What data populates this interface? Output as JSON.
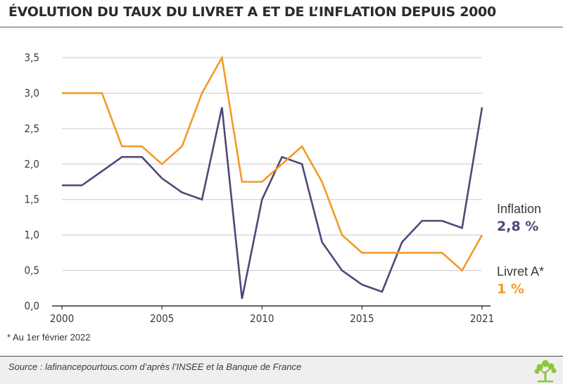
{
  "title": "ÉVOLUTION DU TAUX DU LIVRET A ET DE L’INFLATION DEPUIS 2000",
  "footnote": "* Au 1er février 2022",
  "source": "Source : lafinancepourtous.com d’après l’INSEE et la Banque de France",
  "legend": {
    "inflation_name": "Inflation",
    "inflation_value": "2,8 %",
    "livret_name": "Livret A*",
    "livret_value": "1 %"
  },
  "colors": {
    "inflation": "#4f4877",
    "livret": "#f39a28",
    "axis": "#333333",
    "grid": "#c9c9c9",
    "logo": "#8cc63f"
  },
  "icons": {
    "logo": "tree-logo-icon"
  },
  "chart_data": {
    "type": "line",
    "title": "ÉVOLUTION DU TAUX DU LIVRET A ET DE L’INFLATION DEPUIS 2000",
    "xlabel": "",
    "ylabel": "",
    "x": [
      2000,
      2001,
      2002,
      2003,
      2004,
      2005,
      2006,
      2007,
      2008,
      2009,
      2010,
      2011,
      2012,
      2013,
      2014,
      2015,
      2016,
      2017,
      2018,
      2019,
      2020,
      2021
    ],
    "x_ticks": [
      "2000",
      "2005",
      "2010",
      "2015",
      "2021"
    ],
    "x_tick_values": [
      2000,
      2005,
      2010,
      2015,
      2021
    ],
    "y_ticks": [
      "0,0",
      "0,5",
      "1,0",
      "1,5",
      "2,0",
      "2,5",
      "3,0",
      "3,5"
    ],
    "y_tick_values": [
      0,
      0.5,
      1,
      1.5,
      2,
      2.5,
      3,
      3.5
    ],
    "ylim": [
      0,
      3.5
    ],
    "grid": true,
    "series": [
      {
        "name": "Inflation",
        "key": "inflation",
        "values": [
          1.7,
          1.7,
          1.9,
          2.1,
          2.1,
          1.8,
          1.6,
          1.5,
          2.8,
          0.1,
          1.5,
          2.1,
          2.0,
          0.9,
          0.5,
          0.3,
          0.2,
          0.9,
          1.2,
          1.2,
          1.1,
          2.8
        ]
      },
      {
        "name": "Livret A*",
        "key": "livret",
        "values": [
          3.0,
          3.0,
          3.0,
          2.25,
          2.25,
          2.0,
          2.25,
          3.0,
          3.5,
          1.75,
          1.75,
          2.0,
          2.25,
          1.75,
          1.0,
          0.75,
          0.75,
          0.75,
          0.75,
          0.75,
          0.5,
          1.0
        ]
      }
    ]
  }
}
